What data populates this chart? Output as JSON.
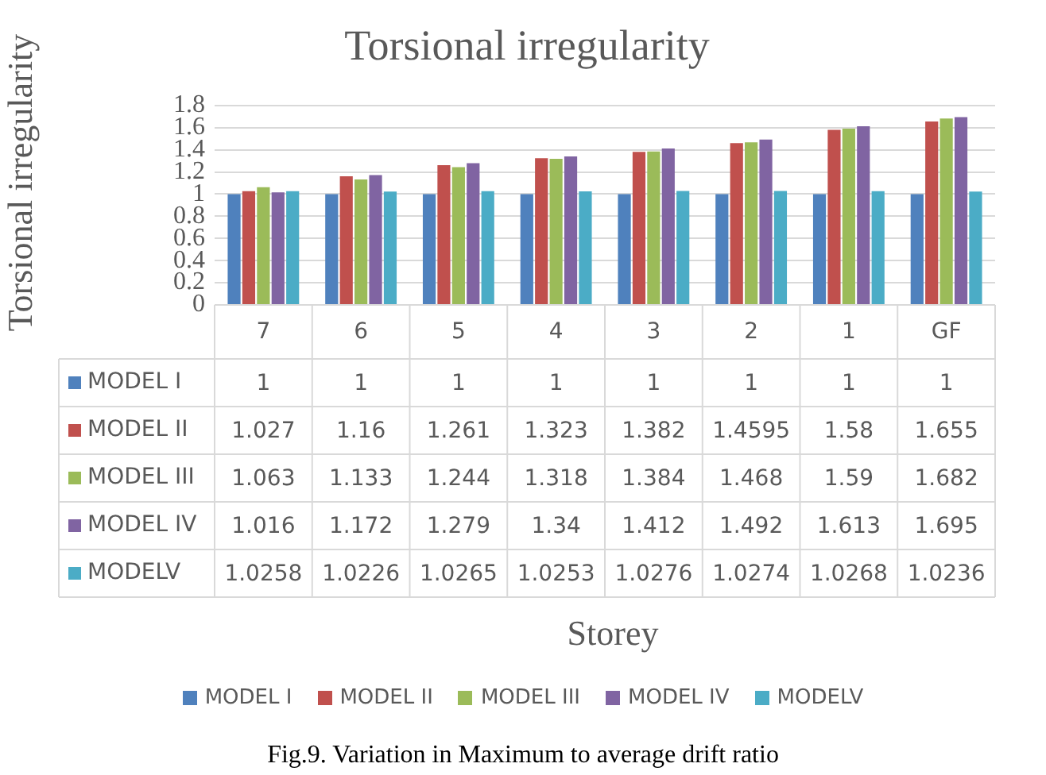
{
  "chart_data": {
    "type": "bar",
    "title": "Torsional irregularity",
    "ylabel": "Torsional irregularity",
    "categories": [
      "7",
      "6",
      "5",
      "4",
      "3",
      "2",
      "1",
      "GF"
    ],
    "series": [
      {
        "name": "MODEL I",
        "color": "#4f81bd",
        "values": [
          1,
          1,
          1,
          1,
          1,
          1,
          1,
          1
        ]
      },
      {
        "name": "MODEL II",
        "color": "#c0504d",
        "values": [
          1.027,
          1.16,
          1.261,
          1.323,
          1.382,
          1.4595,
          1.58,
          1.655
        ]
      },
      {
        "name": "MODEL III",
        "color": "#9bbb59",
        "values": [
          1.063,
          1.133,
          1.244,
          1.318,
          1.384,
          1.468,
          1.59,
          1.682
        ]
      },
      {
        "name": "MODEL IV",
        "color": "#8064a2",
        "values": [
          1.016,
          1.172,
          1.279,
          1.34,
          1.412,
          1.492,
          1.613,
          1.695
        ]
      },
      {
        "name": "MODELV",
        "color": "#4bacc6",
        "values": [
          1.0258,
          1.0226,
          1.0265,
          1.0253,
          1.0276,
          1.0274,
          1.0268,
          1.0236
        ]
      }
    ],
    "ylim": [
      0,
      1.8
    ],
    "yticks": [
      0,
      0.2,
      0.4,
      0.6,
      0.8,
      1,
      1.2,
      1.4,
      1.6,
      1.8
    ],
    "grid": "y",
    "legend": "bottom",
    "data_labels": true,
    "annotations": [
      "Storey",
      "Fig.9. Variation in Maximum to average drift ratio"
    ]
  }
}
